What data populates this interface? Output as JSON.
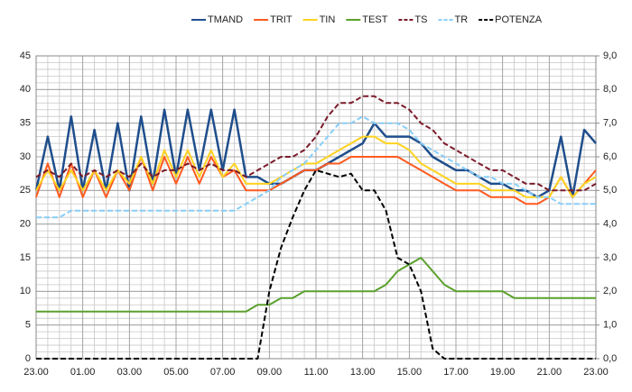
{
  "chart_data": {
    "type": "line",
    "x": [
      0,
      0.5,
      1,
      1.5,
      2,
      2.5,
      3,
      3.5,
      4,
      4.5,
      5,
      5.5,
      6,
      6.5,
      7,
      7.5,
      8,
      8.5,
      9,
      9.5,
      10,
      10.5,
      11,
      11.5,
      12,
      12.5,
      13,
      13.5,
      14,
      14.5,
      15,
      15.5,
      16,
      16.5,
      17,
      17.5,
      18,
      18.5,
      19,
      19.5,
      20,
      20.5,
      21,
      21.5,
      22,
      22.5,
      23,
      23.5,
      24
    ],
    "xlim": [
      0,
      24
    ],
    "xticks": [
      {
        "value": 0,
        "label": "23.00"
      },
      {
        "value": 2,
        "label": "01.00"
      },
      {
        "value": 4,
        "label": "03.00"
      },
      {
        "value": 6,
        "label": "05.00"
      },
      {
        "value": 8,
        "label": "07.00"
      },
      {
        "value": 10,
        "label": "09.00"
      },
      {
        "value": 12,
        "label": "11.00"
      },
      {
        "value": 14,
        "label": "13.00"
      },
      {
        "value": 16,
        "label": "15.00"
      },
      {
        "value": 18,
        "label": "17.00"
      },
      {
        "value": 20,
        "label": "19.00"
      },
      {
        "value": 22,
        "label": "21.00"
      },
      {
        "value": 24,
        "label": "23.00"
      }
    ],
    "ylim": [
      0,
      45
    ],
    "yticks": [
      0,
      5,
      10,
      15,
      20,
      25,
      30,
      35,
      40,
      45
    ],
    "y2lim": [
      0,
      9
    ],
    "y2ticks": [
      {
        "value": 0,
        "label": "0,0"
      },
      {
        "value": 1,
        "label": "1,0"
      },
      {
        "value": 2,
        "label": "2,0"
      },
      {
        "value": 3,
        "label": "3,0"
      },
      {
        "value": 4,
        "label": "4,0"
      },
      {
        "value": 5,
        "label": "5,0"
      },
      {
        "value": 6,
        "label": "6,0"
      },
      {
        "value": 7,
        "label": "7,0"
      },
      {
        "value": 8,
        "label": "8,0"
      },
      {
        "value": 9,
        "label": "9,0"
      }
    ],
    "grid": true,
    "minor_grid": {
      "x_step": 0.5,
      "y_step": 1
    },
    "legend": "top",
    "series": [
      {
        "name": "TMAND",
        "color": "#1f4e8c",
        "width": 2.5,
        "values": [
          25,
          33,
          25,
          36,
          25,
          34,
          25,
          35,
          25,
          36,
          26,
          37,
          27,
          37,
          28,
          37,
          28,
          37,
          27,
          27,
          26,
          26,
          27,
          28,
          28,
          29,
          30,
          31,
          32,
          35,
          33,
          33,
          33,
          32,
          30,
          29,
          28,
          28,
          27,
          26,
          26,
          25,
          25,
          24,
          25,
          33,
          24,
          34,
          32
        ]
      },
      {
        "name": "TRIT",
        "color": "#ff5a1f",
        "width": 2,
        "values": [
          24,
          29,
          24,
          29,
          24,
          28,
          24,
          28,
          25,
          30,
          25,
          30,
          26,
          30,
          26,
          30,
          27,
          28,
          25,
          25,
          25,
          26,
          27,
          28,
          28,
          29,
          29,
          30,
          30,
          30,
          30,
          30,
          29,
          28,
          27,
          26,
          25,
          25,
          25,
          24,
          24,
          24,
          23,
          23,
          24,
          27,
          24,
          26,
          28
        ]
      },
      {
        "name": "TIN",
        "color": "#ffd21f",
        "width": 2,
        "values": [
          25,
          28,
          25,
          28,
          25,
          28,
          25,
          28,
          26,
          30,
          26,
          31,
          27,
          31,
          27,
          31,
          27,
          29,
          26,
          26,
          26,
          27,
          28,
          29,
          29,
          30,
          31,
          32,
          33,
          33,
          32,
          32,
          31,
          29,
          28,
          27,
          26,
          26,
          26,
          25,
          25,
          25,
          24,
          24,
          24,
          27,
          24,
          26,
          27
        ]
      },
      {
        "name": "TEST",
        "color": "#5aa02c",
        "width": 2,
        "values": [
          7,
          7,
          7,
          7,
          7,
          7,
          7,
          7,
          7,
          7,
          7,
          7,
          7,
          7,
          7,
          7,
          7,
          7,
          7,
          8,
          8,
          9,
          9,
          10,
          10,
          10,
          10,
          10,
          10,
          10,
          11,
          13,
          14,
          15,
          13,
          11,
          10,
          10,
          10,
          10,
          10,
          9,
          9,
          9,
          9,
          9,
          9,
          9,
          9
        ]
      },
      {
        "name": "TS",
        "color": "#7b1a2a",
        "width": 2,
        "line_style": "dashed",
        "values": [
          27,
          28,
          27,
          29,
          27,
          28,
          27,
          28,
          27,
          29,
          27,
          28,
          28,
          29,
          28,
          29,
          28,
          28,
          27,
          28,
          29,
          30,
          30,
          31,
          33,
          36,
          38,
          38,
          39,
          39,
          38,
          38,
          37,
          35,
          34,
          32,
          31,
          30,
          29,
          28,
          28,
          27,
          26,
          26,
          25,
          25,
          25,
          25,
          26
        ]
      },
      {
        "name": "TR",
        "color": "#87cefa",
        "width": 2,
        "line_style": "dashed",
        "values": [
          21,
          21,
          21,
          22,
          22,
          22,
          22,
          22,
          22,
          22,
          22,
          22,
          22,
          22,
          22,
          22,
          22,
          22,
          23,
          24,
          25,
          27,
          28,
          29,
          31,
          33,
          35,
          35,
          36,
          35,
          35,
          35,
          34,
          32,
          31,
          30,
          29,
          28,
          27,
          27,
          26,
          26,
          25,
          24,
          24,
          23,
          23,
          23,
          23
        ]
      },
      {
        "name": "POTENZA",
        "color": "#000000",
        "width": 2,
        "line_style": "dashed",
        "axis": "y2",
        "values": [
          0,
          0,
          0,
          0,
          0,
          0,
          0,
          0,
          0,
          0,
          0,
          0,
          0,
          0,
          0,
          0,
          0,
          0,
          0,
          0,
          2.0,
          3.3,
          4.2,
          5.0,
          5.6,
          5.5,
          5.4,
          5.5,
          5.0,
          5.0,
          4.4,
          3.0,
          2.8,
          2.0,
          0.3,
          0,
          0,
          0,
          0,
          0,
          0,
          0,
          0,
          0,
          0,
          0,
          0,
          0,
          0
        ]
      }
    ]
  }
}
